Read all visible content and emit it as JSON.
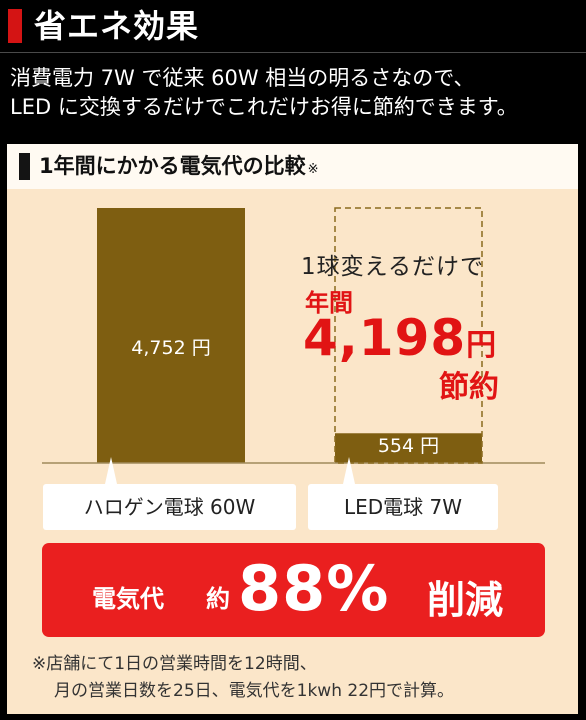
{
  "header": {
    "title": "省エネ効果",
    "accent_color": "#d41414"
  },
  "intro": {
    "line1": "消費電力 7W で従来 60W 相当の明るさなので、",
    "line2": "LED に交換するだけでこれだけお得に節約できます。"
  },
  "panel": {
    "title": "1年間にかかる電気代の比較",
    "note_mark": "※"
  },
  "chart_data": {
    "type": "bar",
    "categories": [
      "ハロゲン電球 60W",
      "LED電球 7W"
    ],
    "values": [
      4752,
      554
    ],
    "value_labels": [
      "4,752 円",
      "554 円"
    ],
    "unit": "円",
    "bar_color": "#7e5e11",
    "ylim": [
      0,
      4752
    ],
    "grid": false
  },
  "callout": {
    "lead": "1球変えるだけで",
    "year": "年間",
    "amount": "4,198",
    "unit": "円",
    "suffix": "節約",
    "color": "#e11414"
  },
  "reduction": {
    "label": "電気代",
    "prefix": "約",
    "value": "88%",
    "suffix": "削減",
    "bg_color": "#ea1f1f"
  },
  "footnote": {
    "line1": "※店舗にて1日の営業時間を12時間、",
    "line2": "月の営業日数を25日、電気代を1kwh 22円で計算。"
  }
}
